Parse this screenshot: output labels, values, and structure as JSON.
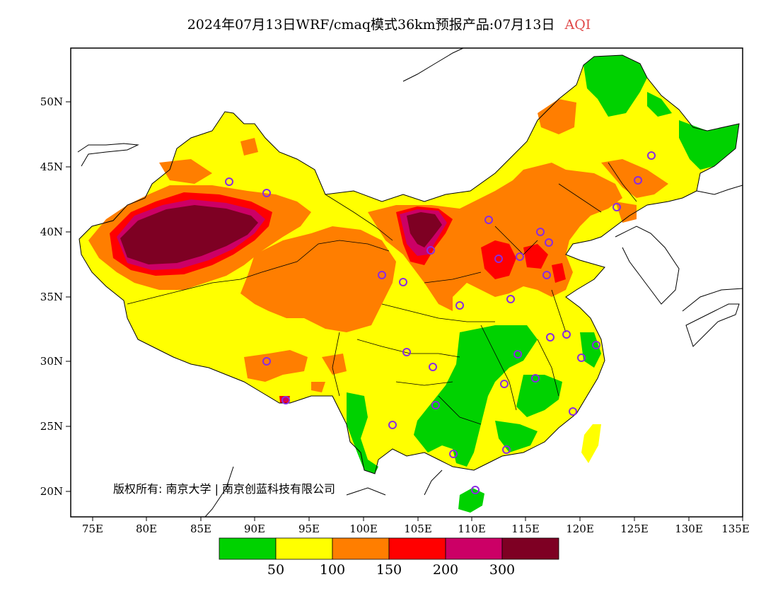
{
  "title": {
    "main": "2024年07月13日WRF/cmaq模式36km预报产品:07月13日",
    "variable": "AQI"
  },
  "map": {
    "lat_ticks": [
      "50N",
      "45N",
      "40N",
      "35N",
      "30N",
      "25N",
      "20N"
    ],
    "lon_ticks": [
      "75E",
      "80E",
      "85E",
      "90E",
      "95E",
      "100E",
      "105E",
      "110E",
      "115E",
      "120E",
      "125E",
      "130E",
      "135E"
    ],
    "copyright": "版权所有: 南京大学 | 南京创蓝科技有限公司"
  },
  "colorbar": {
    "colors": [
      "#00d200",
      "#ffff00",
      "#ff7e00",
      "#ff0000",
      "#cc0066",
      "#7e0023"
    ],
    "labels": [
      "50",
      "100",
      "150",
      "200",
      "300"
    ]
  },
  "colors": {
    "good": "#00d200",
    "moderate": "#ffff00",
    "sensitive": "#ff7e00",
    "unhealthy": "#ff0000",
    "very_unhealthy": "#cc0066",
    "hazardous": "#7e0023",
    "station_marker": "#8a2be2",
    "title_accent": "#e04848"
  }
}
